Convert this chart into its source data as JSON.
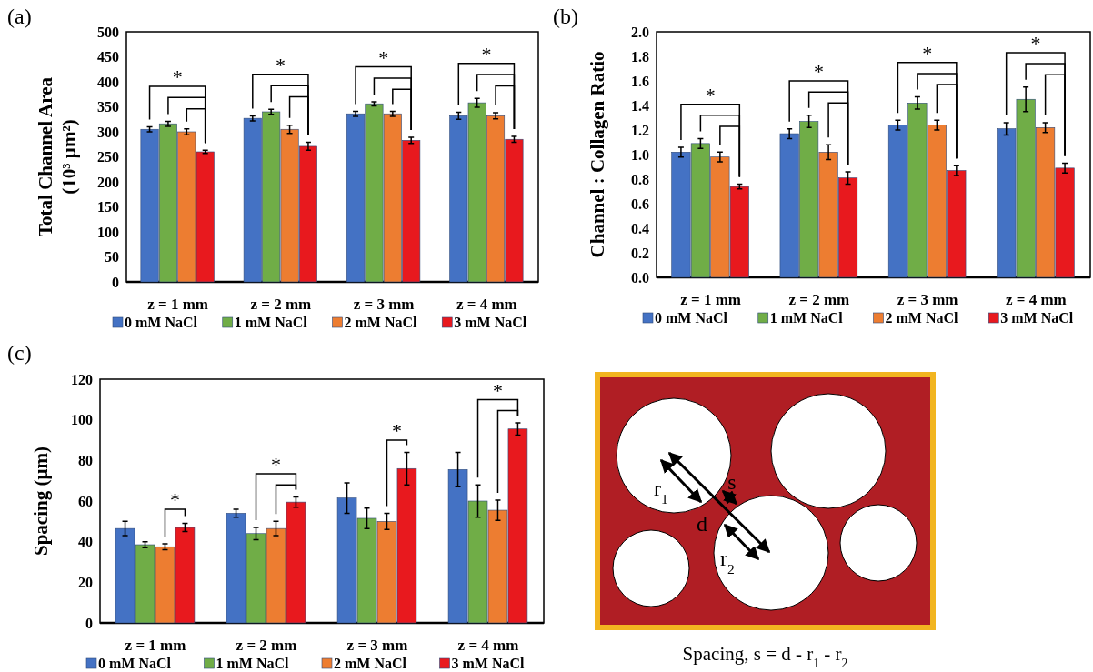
{
  "chart_data": [
    {
      "type": "bar",
      "title": "(a)",
      "ylabel": "Total Channel Area (10³ µm²)",
      "categories": [
        "z = 1 mm",
        "z = 2 mm",
        "z = 3 mm",
        "z = 4 mm"
      ],
      "ylim": [
        0,
        500
      ],
      "yticks": [
        0,
        50,
        100,
        150,
        200,
        250,
        300,
        350,
        400,
        450,
        500
      ],
      "legend": "bottom",
      "series": [
        {
          "name": "0 mM NaCl",
          "color": "#4472c4",
          "values": [
            305,
            327,
            336,
            332
          ],
          "errors": [
            5,
            5,
            5,
            7
          ]
        },
        {
          "name": "1 mM NaCl",
          "color": "#70ad47",
          "values": [
            316,
            340,
            356,
            358
          ],
          "errors": [
            5,
            5,
            4,
            9
          ]
        },
        {
          "name": "2 mM NaCl",
          "color": "#ed7d31",
          "values": [
            300,
            305,
            336,
            332
          ],
          "errors": [
            6,
            8,
            5,
            6
          ]
        },
        {
          "name": "3 mM NaCl",
          "color": "#e8191e",
          "values": [
            260,
            271,
            283,
            285
          ],
          "errors": [
            3,
            8,
            6,
            6
          ]
        }
      ],
      "annotations": [
        "*",
        "*",
        "*",
        "*"
      ]
    },
    {
      "type": "bar",
      "title": "(b)",
      "ylabel": "Channel : Collagen Ratio",
      "categories": [
        "z = 1 mm",
        "z = 2 mm",
        "z = 3 mm",
        "z = 4 mm"
      ],
      "ylim": [
        0,
        2
      ],
      "yticks": [
        {
          "value": 0,
          "label": "0.0"
        },
        {
          "value": 0.2,
          "label": "0.2"
        },
        {
          "value": 0.4,
          "label": "0.4"
        },
        {
          "value": 0.6,
          "label": "0.6"
        },
        {
          "value": 0.8,
          "label": "0.8"
        },
        {
          "value": 1,
          "label": "1.0"
        },
        {
          "value": 1.2,
          "label": "1.2"
        },
        {
          "value": 1.4,
          "label": "1.4"
        },
        {
          "value": 1.6,
          "label": "1.6"
        },
        {
          "value": 1.8,
          "label": "1.8"
        },
        {
          "value": 2,
          "label": "2.0"
        }
      ],
      "legend": "bottom",
      "series": [
        {
          "name": "0 mM NaCl",
          "color": "#4472c4",
          "values": [
            1.02,
            1.17,
            1.24,
            1.21
          ],
          "errors": [
            0.04,
            0.04,
            0.04,
            0.05
          ]
        },
        {
          "name": "1 mM NaCl",
          "color": "#70ad47",
          "values": [
            1.09,
            1.27,
            1.42,
            1.45
          ],
          "errors": [
            0.04,
            0.05,
            0.05,
            0.1
          ]
        },
        {
          "name": "2 mM NaCl",
          "color": "#ed7d31",
          "values": [
            0.98,
            1.02,
            1.24,
            1.22
          ],
          "errors": [
            0.04,
            0.06,
            0.04,
            0.04
          ]
        },
        {
          "name": "3 mM NaCl",
          "color": "#e8191e",
          "values": [
            0.74,
            0.81,
            0.87,
            0.89
          ],
          "errors": [
            0.02,
            0.05,
            0.04,
            0.04
          ]
        }
      ],
      "annotations": [
        "*",
        "*",
        "*",
        "*"
      ]
    },
    {
      "type": "bar",
      "title": "(c)",
      "ylabel": "Spacing (µm)",
      "categories": [
        "z = 1 mm",
        "z = 2 mm",
        "z = 3 mm",
        "z = 4 mm"
      ],
      "ylim": [
        0,
        120
      ],
      "yticks": [
        0,
        20,
        40,
        60,
        80,
        100,
        120
      ],
      "legend": "bottom",
      "series": [
        {
          "name": "0 mM NaCl",
          "color": "#4472c4",
          "values": [
            46.5,
            54,
            61.5,
            75.5
          ],
          "errors": [
            3.5,
            2,
            7.5,
            8.5
          ]
        },
        {
          "name": "1 mM NaCl",
          "color": "#70ad47",
          "values": [
            38.5,
            44,
            51.5,
            60
          ],
          "errors": [
            1.5,
            3,
            5,
            8
          ]
        },
        {
          "name": "2 mM NaCl",
          "color": "#ed7d31",
          "values": [
            37.5,
            46.5,
            50,
            55.5
          ],
          "errors": [
            1.5,
            3.5,
            4,
            5
          ]
        },
        {
          "name": "3 mM NaCl",
          "color": "#e8191e",
          "values": [
            47,
            59.5,
            76,
            95.5
          ],
          "errors": [
            2,
            2.5,
            8,
            3
          ]
        }
      ],
      "annotations": [
        "*",
        "*",
        "*",
        "*"
      ]
    },
    {
      "type": "other",
      "title": "Spacing, s = d - r$_{1}$ - r$_{2}$",
      "annotations": [
        "r$_{1}$",
        "s",
        "d",
        "r$_{2}$"
      ]
    }
  ]
}
